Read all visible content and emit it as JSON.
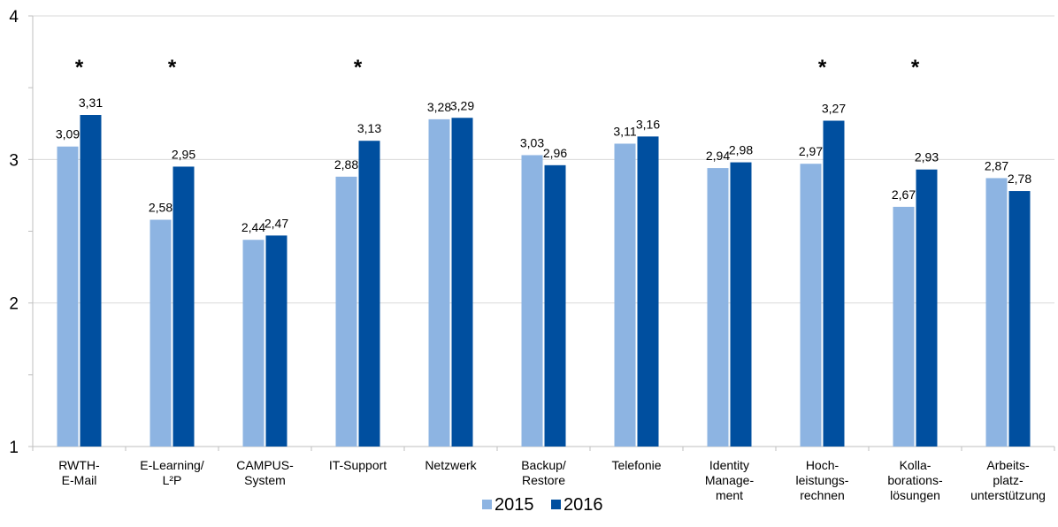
{
  "chart_data": {
    "type": "bar",
    "title": "",
    "xlabel": "",
    "ylabel": "",
    "ylim": [
      1,
      4
    ],
    "y_ticks": [
      1,
      2,
      3,
      4
    ],
    "grid": true,
    "legend_position": "bottom",
    "categories": [
      [
        "RWTH-",
        "E-Mail"
      ],
      [
        "E-Learning/",
        "L²P"
      ],
      [
        "CAMPUS-",
        "System"
      ],
      [
        "IT-Support"
      ],
      [
        "Netzwerk"
      ],
      [
        "Backup/",
        "Restore"
      ],
      [
        "Telefonie"
      ],
      [
        "Identity",
        "Manage-",
        "ment"
      ],
      [
        "Hoch-",
        "leistungs-",
        "rechnen"
      ],
      [
        "Kolla-",
        "borations-",
        "lösungen"
      ],
      [
        "Arbeits-",
        "platz-",
        "unterstützung"
      ]
    ],
    "series": [
      {
        "name": "2015",
        "color": "#8DB4E2",
        "values": [
          3.09,
          2.58,
          2.44,
          2.88,
          3.28,
          3.03,
          3.11,
          2.94,
          2.97,
          2.67,
          2.87
        ],
        "labels": [
          "3,09",
          "2,58",
          "2,44",
          "2,88",
          "3,28",
          "3,03",
          "3,11",
          "2,94",
          "2,97",
          "2,67",
          "2,87"
        ]
      },
      {
        "name": "2016",
        "color": "#004F9F",
        "values": [
          3.31,
          2.95,
          2.47,
          3.13,
          3.29,
          2.96,
          3.16,
          2.98,
          3.27,
          2.93,
          2.78
        ],
        "labels": [
          "3,31",
          "2,95",
          "2,47",
          "3,13",
          "3,29",
          "2,96",
          "3,16",
          "2,98",
          "3,27",
          "2,93",
          "2,78"
        ]
      }
    ],
    "significance_marker": "*",
    "significant": [
      true,
      true,
      false,
      true,
      false,
      false,
      false,
      false,
      true,
      true,
      false
    ]
  }
}
